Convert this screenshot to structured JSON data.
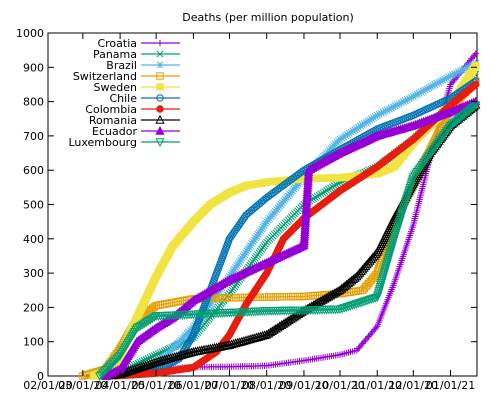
{
  "chart_data": {
    "type": "line",
    "title": "Deaths (per million population)",
    "xlabel": "",
    "ylabel": "",
    "x_ticks": [
      "02/01/20",
      "03/01/20",
      "04/01/20",
      "05/01/20",
      "06/01/20",
      "07/01/20",
      "08/01/20",
      "09/01/20",
      "10/01/20",
      "11/01/20",
      "12/01/20",
      "01/01/21"
    ],
    "y_ticks": [
      0,
      100,
      200,
      300,
      400,
      500,
      600,
      700,
      800,
      900,
      1000
    ],
    "xlim": [
      "2020-02-01",
      "2021-01-23"
    ],
    "ylim": [
      0,
      1000
    ],
    "legend_position": "top-left",
    "grid": false,
    "series": [
      {
        "name": "Croatia",
        "color": "#9400d3",
        "marker": "plus",
        "points": [
          [
            "2020-03-10",
            0
          ],
          [
            "2020-04-01",
            1
          ],
          [
            "2020-05-01",
            20
          ],
          [
            "2020-06-01",
            26
          ],
          [
            "2020-07-01",
            27
          ],
          [
            "2020-08-01",
            30
          ],
          [
            "2020-09-01",
            45
          ],
          [
            "2020-10-01",
            62
          ],
          [
            "2020-10-15",
            75
          ],
          [
            "2020-11-01",
            145
          ],
          [
            "2020-11-15",
            270
          ],
          [
            "2020-12-01",
            440
          ],
          [
            "2020-12-15",
            640
          ],
          [
            "2021-01-01",
            850
          ],
          [
            "2021-01-22",
            940
          ]
        ]
      },
      {
        "name": "Panama",
        "color": "#009e73",
        "marker": "cross",
        "points": [
          [
            "2020-03-10",
            0
          ],
          [
            "2020-04-01",
            12
          ],
          [
            "2020-05-01",
            62
          ],
          [
            "2020-06-01",
            112
          ],
          [
            "2020-07-01",
            240
          ],
          [
            "2020-08-01",
            390
          ],
          [
            "2020-09-01",
            500
          ],
          [
            "2020-10-01",
            565
          ],
          [
            "2020-11-01",
            610
          ],
          [
            "2020-12-01",
            690
          ],
          [
            "2021-01-01",
            790
          ],
          [
            "2021-01-22",
            895
          ]
        ]
      },
      {
        "name": "Brazil",
        "color": "#56b4e9",
        "marker": "asterisk",
        "points": [
          [
            "2020-03-15",
            0
          ],
          [
            "2020-04-01",
            2
          ],
          [
            "2020-05-01",
            30
          ],
          [
            "2020-06-01",
            142
          ],
          [
            "2020-07-01",
            290
          ],
          [
            "2020-08-01",
            450
          ],
          [
            "2020-09-01",
            580
          ],
          [
            "2020-10-01",
            690
          ],
          [
            "2020-11-01",
            760
          ],
          [
            "2020-12-01",
            815
          ],
          [
            "2021-01-01",
            875
          ],
          [
            "2021-01-22",
            912
          ]
        ]
      },
      {
        "name": "Switzerland",
        "color": "#e69f00",
        "marker": "square-open",
        "points": [
          [
            "2020-03-01",
            0
          ],
          [
            "2020-03-20",
            20
          ],
          [
            "2020-04-01",
            80
          ],
          [
            "2020-04-15",
            165
          ],
          [
            "2020-05-01",
            205
          ],
          [
            "2020-06-01",
            225
          ],
          [
            "2020-07-01",
            228
          ],
          [
            "2020-08-01",
            230
          ],
          [
            "2020-09-01",
            232
          ],
          [
            "2020-10-01",
            240
          ],
          [
            "2020-10-20",
            250
          ],
          [
            "2020-11-01",
            300
          ],
          [
            "2020-11-15",
            440
          ],
          [
            "2020-12-01",
            560
          ],
          [
            "2021-01-01",
            780
          ],
          [
            "2021-01-22",
            860
          ]
        ]
      },
      {
        "name": "Sweden",
        "color": "#f0e442",
        "marker": "square-filled",
        "points": [
          [
            "2020-03-10",
            0
          ],
          [
            "2020-03-25",
            20
          ],
          [
            "2020-04-01",
            60
          ],
          [
            "2020-04-15",
            170
          ],
          [
            "2020-05-01",
            290
          ],
          [
            "2020-05-15",
            380
          ],
          [
            "2020-06-01",
            450
          ],
          [
            "2020-06-15",
            500
          ],
          [
            "2020-07-01",
            535
          ],
          [
            "2020-07-15",
            555
          ],
          [
            "2020-08-01",
            565
          ],
          [
            "2020-09-01",
            575
          ],
          [
            "2020-10-01",
            578
          ],
          [
            "2020-11-01",
            590
          ],
          [
            "2020-11-15",
            610
          ],
          [
            "2020-12-01",
            680
          ],
          [
            "2021-01-01",
            790
          ],
          [
            "2021-01-22",
            905
          ]
        ]
      },
      {
        "name": "Chile",
        "color": "#0072b2",
        "marker": "circle-open",
        "points": [
          [
            "2020-03-20",
            0
          ],
          [
            "2020-04-01",
            2
          ],
          [
            "2020-05-01",
            15
          ],
          [
            "2020-05-20",
            50
          ],
          [
            "2020-06-01",
            120
          ],
          [
            "2020-06-15",
            250
          ],
          [
            "2020-07-01",
            400
          ],
          [
            "2020-07-15",
            470
          ],
          [
            "2020-08-01",
            520
          ],
          [
            "2020-09-01",
            600
          ],
          [
            "2020-10-01",
            660
          ],
          [
            "2020-11-01",
            720
          ],
          [
            "2020-12-01",
            760
          ],
          [
            "2021-01-01",
            810
          ],
          [
            "2021-01-22",
            860
          ]
        ]
      },
      {
        "name": "Colombia",
        "color": "#e51e10",
        "marker": "circle-filled",
        "points": [
          [
            "2020-03-20",
            0
          ],
          [
            "2020-04-01",
            1
          ],
          [
            "2020-05-01",
            8
          ],
          [
            "2020-06-01",
            25
          ],
          [
            "2020-06-20",
            70
          ],
          [
            "2020-07-01",
            120
          ],
          [
            "2020-07-15",
            210
          ],
          [
            "2020-08-01",
            300
          ],
          [
            "2020-08-15",
            400
          ],
          [
            "2020-09-01",
            460
          ],
          [
            "2020-10-01",
            540
          ],
          [
            "2020-11-01",
            610
          ],
          [
            "2020-12-01",
            690
          ],
          [
            "2021-01-01",
            790
          ],
          [
            "2021-01-22",
            850
          ]
        ]
      },
      {
        "name": "Romania",
        "color": "#000000",
        "marker": "triangle-open",
        "points": [
          [
            "2020-03-20",
            0
          ],
          [
            "2020-04-01",
            5
          ],
          [
            "2020-05-01",
            40
          ],
          [
            "2020-06-01",
            70
          ],
          [
            "2020-07-01",
            90
          ],
          [
            "2020-08-01",
            120
          ],
          [
            "2020-09-01",
            190
          ],
          [
            "2020-10-01",
            250
          ],
          [
            "2020-10-15",
            290
          ],
          [
            "2020-11-01",
            360
          ],
          [
            "2020-11-15",
            460
          ],
          [
            "2020-12-01",
            560
          ],
          [
            "2020-12-15",
            650
          ],
          [
            "2021-01-01",
            730
          ],
          [
            "2021-01-22",
            790
          ]
        ]
      },
      {
        "name": "Ecuador",
        "color": "#9400d3",
        "marker": "triangle-filled",
        "points": [
          [
            "2020-03-20",
            0
          ],
          [
            "2020-04-01",
            20
          ],
          [
            "2020-04-15",
            100
          ],
          [
            "2020-05-01",
            140
          ],
          [
            "2020-05-15",
            170
          ],
          [
            "2020-06-01",
            220
          ],
          [
            "2020-07-01",
            280
          ],
          [
            "2020-08-01",
            330
          ],
          [
            "2020-09-01",
            380
          ],
          [
            "2020-09-05",
            600
          ],
          [
            "2020-10-01",
            650
          ],
          [
            "2020-11-01",
            700
          ],
          [
            "2020-12-01",
            730
          ],
          [
            "2021-01-01",
            770
          ],
          [
            "2021-01-22",
            800
          ]
        ]
      },
      {
        "name": "Luxembourg",
        "color": "#009e73",
        "marker": "inverted-triangle-open",
        "points": [
          [
            "2020-03-15",
            0
          ],
          [
            "2020-04-01",
            60
          ],
          [
            "2020-04-15",
            140
          ],
          [
            "2020-05-01",
            175
          ],
          [
            "2020-06-01",
            180
          ],
          [
            "2020-07-01",
            185
          ],
          [
            "2020-08-01",
            190
          ],
          [
            "2020-09-01",
            192
          ],
          [
            "2020-10-01",
            195
          ],
          [
            "2020-11-01",
            230
          ],
          [
            "2020-11-15",
            400
          ],
          [
            "2020-12-01",
            580
          ],
          [
            "2021-01-01",
            730
          ],
          [
            "2021-01-22",
            790
          ]
        ]
      }
    ]
  }
}
